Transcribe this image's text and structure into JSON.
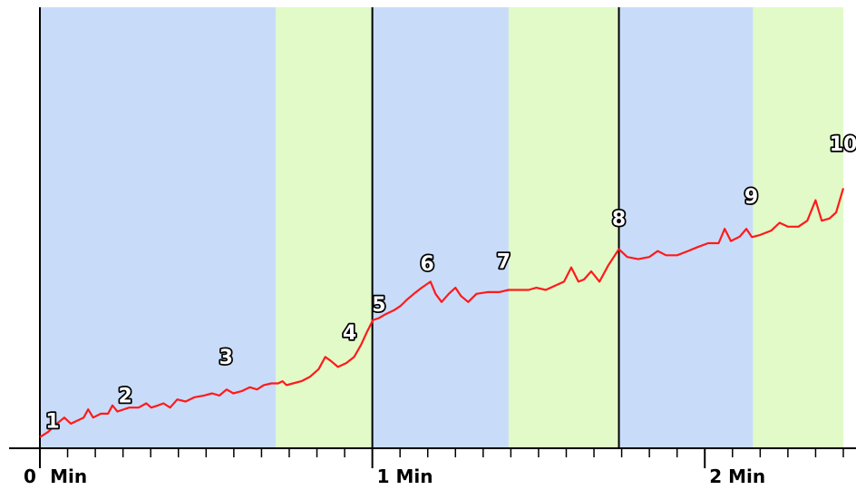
{
  "chart_data": {
    "type": "line",
    "title": "",
    "xlabel": "",
    "ylabel": "",
    "x_unit": "seconds",
    "xlim": [
      0,
      145
    ],
    "ylim": [
      0,
      100
    ],
    "grid": false,
    "x_ticks": [
      {
        "value": 0,
        "label": "0"
      },
      {
        "value": 1,
        "label": "Min"
      },
      {
        "value": 60,
        "label": "1 Min"
      },
      {
        "value": 120,
        "label": "2 Min"
      }
    ],
    "bands": [
      {
        "start": 0,
        "end": 42.6,
        "color": "#c8dcfa"
      },
      {
        "start": 42.6,
        "end": 60,
        "color": "#e1fac8"
      },
      {
        "start": 60,
        "end": 84.6,
        "color": "#c8dcfa"
      },
      {
        "start": 84.6,
        "end": 104.5,
        "color": "#e1fac8"
      },
      {
        "start": 104.5,
        "end": 128.7,
        "color": "#c8dcfa"
      },
      {
        "start": 128.7,
        "end": 145,
        "color": "#e1fac8"
      }
    ],
    "vlines": [
      0,
      60,
      104.5
    ],
    "series": [
      {
        "color": "#ff1a1a",
        "points": [
          [
            0.0,
            0.7
          ],
          [
            1.5,
            1.9
          ],
          [
            2.6,
            3.3
          ],
          [
            4.4,
            5.2
          ],
          [
            5.6,
            3.8
          ],
          [
            7.9,
            5.2
          ],
          [
            8.7,
            7.1
          ],
          [
            9.6,
            5.2
          ],
          [
            11.0,
            6.1
          ],
          [
            12.3,
            6.1
          ],
          [
            13.1,
            8.0
          ],
          [
            14.0,
            6.6
          ],
          [
            16.1,
            7.5
          ],
          [
            17.8,
            7.5
          ],
          [
            19.2,
            8.5
          ],
          [
            20.1,
            7.5
          ],
          [
            21.3,
            8.0
          ],
          [
            22.3,
            8.5
          ],
          [
            23.5,
            7.5
          ],
          [
            24.8,
            9.4
          ],
          [
            26.3,
            8.9
          ],
          [
            27.9,
            9.9
          ],
          [
            29.6,
            10.3
          ],
          [
            31.1,
            10.8
          ],
          [
            32.4,
            10.3
          ],
          [
            33.7,
            11.7
          ],
          [
            34.9,
            10.8
          ],
          [
            36.4,
            11.3
          ],
          [
            37.9,
            12.2
          ],
          [
            39.2,
            11.7
          ],
          [
            40.4,
            12.7
          ],
          [
            41.8,
            13.1
          ],
          [
            43.0,
            13.1
          ],
          [
            43.8,
            13.6
          ],
          [
            44.5,
            12.7
          ],
          [
            45.7,
            13.1
          ],
          [
            47.2,
            13.6
          ],
          [
            48.7,
            14.6
          ],
          [
            50.3,
            16.4
          ],
          [
            51.5,
            19.2
          ],
          [
            52.5,
            18.3
          ],
          [
            53.8,
            16.9
          ],
          [
            55.3,
            17.8
          ],
          [
            56.7,
            19.2
          ],
          [
            58.0,
            22.1
          ],
          [
            59.0,
            24.9
          ],
          [
            60.1,
            27.7
          ],
          [
            61.2,
            28.2
          ],
          [
            62.4,
            29.1
          ],
          [
            63.9,
            30.0
          ],
          [
            65.1,
            31.0
          ],
          [
            66.2,
            32.4
          ],
          [
            67.5,
            33.8
          ],
          [
            68.9,
            35.2
          ],
          [
            70.5,
            36.6
          ],
          [
            71.4,
            33.8
          ],
          [
            72.5,
            31.9
          ],
          [
            73.8,
            33.8
          ],
          [
            75.0,
            35.2
          ],
          [
            76.0,
            33.3
          ],
          [
            77.3,
            31.9
          ],
          [
            78.8,
            33.8
          ],
          [
            80.8,
            34.2
          ],
          [
            82.9,
            34.2
          ],
          [
            84.6,
            34.7
          ],
          [
            86.3,
            34.7
          ],
          [
            88.2,
            34.7
          ],
          [
            89.6,
            35.2
          ],
          [
            91.3,
            34.7
          ],
          [
            93.0,
            35.7
          ],
          [
            94.6,
            36.6
          ],
          [
            95.9,
            39.9
          ],
          [
            97.2,
            36.6
          ],
          [
            98.2,
            37.1
          ],
          [
            99.5,
            39.0
          ],
          [
            101.0,
            36.6
          ],
          [
            102.6,
            40.4
          ],
          [
            104.5,
            44.1
          ],
          [
            106.0,
            42.3
          ],
          [
            108.0,
            41.8
          ],
          [
            110.0,
            42.3
          ],
          [
            111.5,
            43.7
          ],
          [
            113.0,
            42.7
          ],
          [
            115.0,
            42.7
          ],
          [
            117.0,
            43.7
          ],
          [
            118.7,
            44.6
          ],
          [
            120.6,
            45.5
          ],
          [
            122.5,
            45.5
          ],
          [
            123.6,
            48.8
          ],
          [
            124.7,
            46.0
          ],
          [
            126.3,
            47.0
          ],
          [
            127.5,
            48.8
          ],
          [
            128.5,
            46.9
          ],
          [
            130.0,
            47.4
          ],
          [
            132.0,
            48.4
          ],
          [
            133.5,
            50.2
          ],
          [
            135.0,
            49.3
          ],
          [
            136.9,
            49.3
          ],
          [
            138.5,
            50.7
          ],
          [
            140.0,
            55.4
          ],
          [
            141.1,
            50.7
          ],
          [
            142.5,
            51.2
          ],
          [
            143.7,
            52.6
          ],
          [
            145.0,
            58.2
          ]
        ]
      }
    ],
    "annotations": [
      {
        "label": "1",
        "x": 2.3,
        "y": 4.9
      },
      {
        "label": "2",
        "x": 15.4,
        "y": 10.8
      },
      {
        "label": "3",
        "x": 33.6,
        "y": 19.7
      },
      {
        "label": "4",
        "x": 55.9,
        "y": 25.4
      },
      {
        "label": "5",
        "x": 61.2,
        "y": 31.9
      },
      {
        "label": "6",
        "x": 69.9,
        "y": 41.3
      },
      {
        "label": "7",
        "x": 83.7,
        "y": 41.8
      },
      {
        "label": "8",
        "x": 104.5,
        "y": 51.7
      },
      {
        "label": "9",
        "x": 128.4,
        "y": 56.8
      },
      {
        "label": "10",
        "x": 145.0,
        "y": 69.0
      }
    ]
  }
}
